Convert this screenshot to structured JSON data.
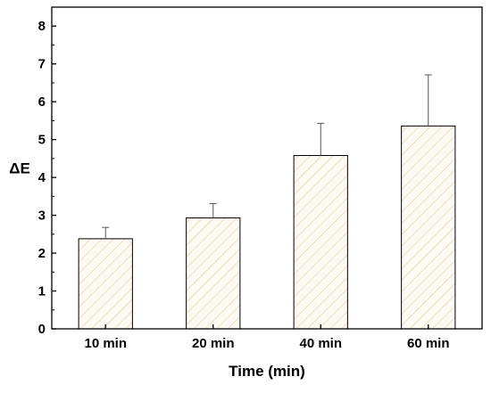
{
  "chart_data": {
    "type": "bar",
    "title": "",
    "xlabel": "Time (min)",
    "ylabel": "ΔE",
    "categories": [
      "10 min",
      "20 min",
      "40 min",
      "60 min"
    ],
    "values": [
      2.38,
      2.93,
      4.58,
      5.36
    ],
    "error_plus": [
      0.3,
      0.38,
      0.85,
      1.35
    ],
    "ylim": [
      0,
      8.5
    ],
    "yticks": [
      0,
      1,
      2,
      3,
      4,
      5,
      6,
      7,
      8
    ],
    "ytick_labels": [
      "0",
      "1",
      "2",
      "3",
      "4",
      "5",
      "6",
      "7",
      "8"
    ],
    "grid": false,
    "legend": "none",
    "colors": {
      "bar_fill": "#fdfaf3",
      "bar_hatch": "#e2d3ad",
      "bar_stroke": "#000000",
      "error_bar": "#555555",
      "axis": "#000000"
    }
  }
}
